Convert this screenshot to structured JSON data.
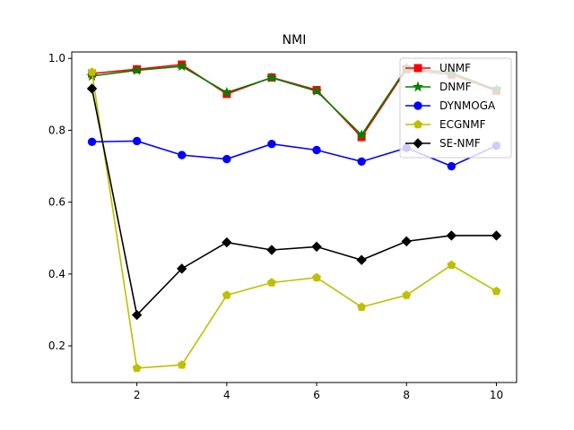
{
  "chart_data": {
    "type": "line",
    "title": "NMI",
    "xlabel": "",
    "ylabel": "",
    "xlim": [
      0.55,
      10.45
    ],
    "ylim": [
      0.098,
      1.018
    ],
    "x_ticks": [
      2,
      4,
      6,
      8,
      10
    ],
    "x_tick_labels": [
      "2",
      "4",
      "6",
      "8",
      "10"
    ],
    "y_ticks": [
      0.2,
      0.4,
      0.6,
      0.8,
      1.0
    ],
    "y_tick_labels": [
      "0.2",
      "0.4",
      "0.6",
      "0.8",
      "1.0"
    ],
    "grid": false,
    "legend_position": "top-right",
    "x": [
      1,
      2,
      3,
      4,
      5,
      6,
      7,
      8,
      9,
      10
    ],
    "series": [
      {
        "name": "UNMF",
        "color": "#ff0000",
        "marker": "square",
        "values": [
          0.958,
          0.97,
          0.983,
          0.901,
          0.947,
          0.912,
          0.781,
          0.97,
          0.955,
          0.91
        ]
      },
      {
        "name": "DNMF",
        "color": "#008000",
        "marker": "star",
        "values": [
          0.951,
          0.967,
          0.978,
          0.905,
          0.946,
          0.909,
          0.787,
          0.974,
          0.96,
          0.913
        ]
      },
      {
        "name": "DYNMOGA",
        "color": "#0000ff",
        "marker": "circle",
        "values": [
          0.768,
          0.77,
          0.731,
          0.72,
          0.762,
          0.745,
          0.713,
          0.751,
          0.7,
          0.757
        ]
      },
      {
        "name": "ECGNMF",
        "color": "#bfbf00",
        "marker": "pentagon",
        "values": [
          0.962,
          0.138,
          0.147,
          0.341,
          0.376,
          0.39,
          0.308,
          0.341,
          0.425,
          0.352
        ]
      },
      {
        "name": "SE-NMF",
        "color": "#000000",
        "marker": "diamond",
        "values": [
          0.916,
          0.286,
          0.415,
          0.488,
          0.467,
          0.476,
          0.439,
          0.491,
          0.507,
          0.507
        ]
      }
    ]
  }
}
